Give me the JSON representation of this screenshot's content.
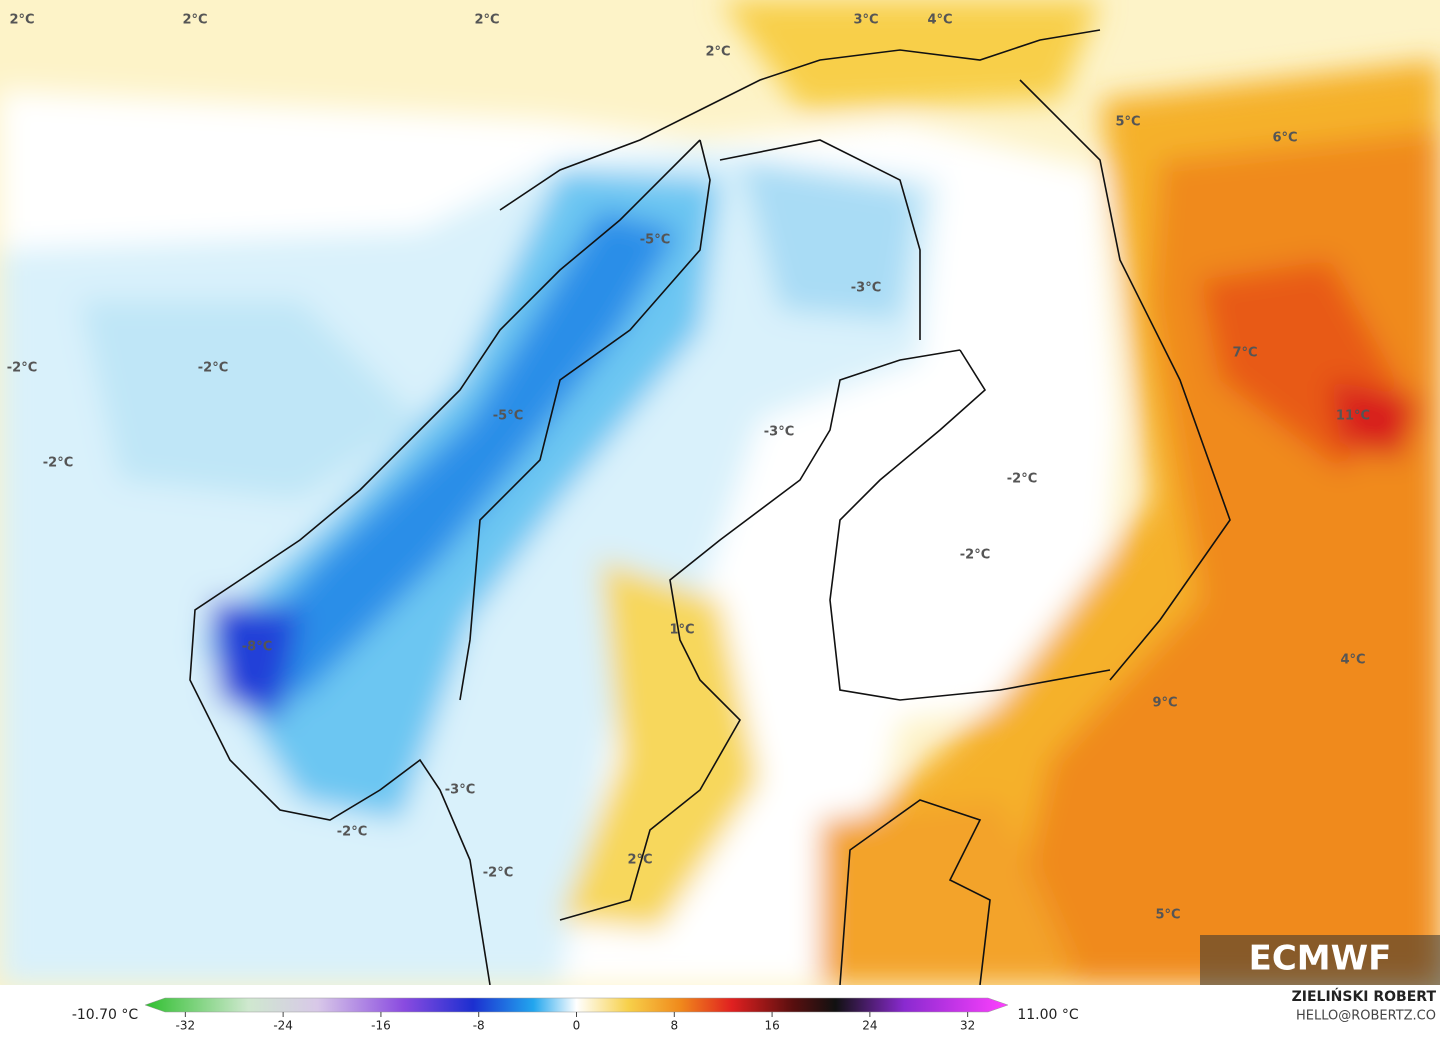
{
  "map": {
    "labels": [
      "2°C",
      "2°C",
      "2°C",
      "2°C",
      "3°C",
      "4°C",
      "5°C",
      "6°C",
      "-5°C",
      "-3°C",
      "-2°C",
      "-2°C",
      "-2°C",
      "-5°C",
      "-3°C",
      "7°C",
      "11°C",
      "-2°C",
      "-2°C",
      "1°C",
      "-8°C",
      "4°C",
      "9°C",
      "-3°C",
      "-2°C",
      "2°C",
      "-2°C",
      "5°C"
    ],
    "logo": "ECMWF"
  },
  "colorbar": {
    "min_label": "-10.70 °C",
    "max_label": "11.00 °C",
    "lim": [
      -35.3,
      35.3
    ],
    "ticks": [
      -32,
      -24,
      -16,
      -8,
      0,
      8,
      16,
      24,
      32
    ]
  },
  "credits": {
    "author": "ZIELIŃSKI ROBERT",
    "contact": "HELLO@ROBERTZ.CO"
  }
}
